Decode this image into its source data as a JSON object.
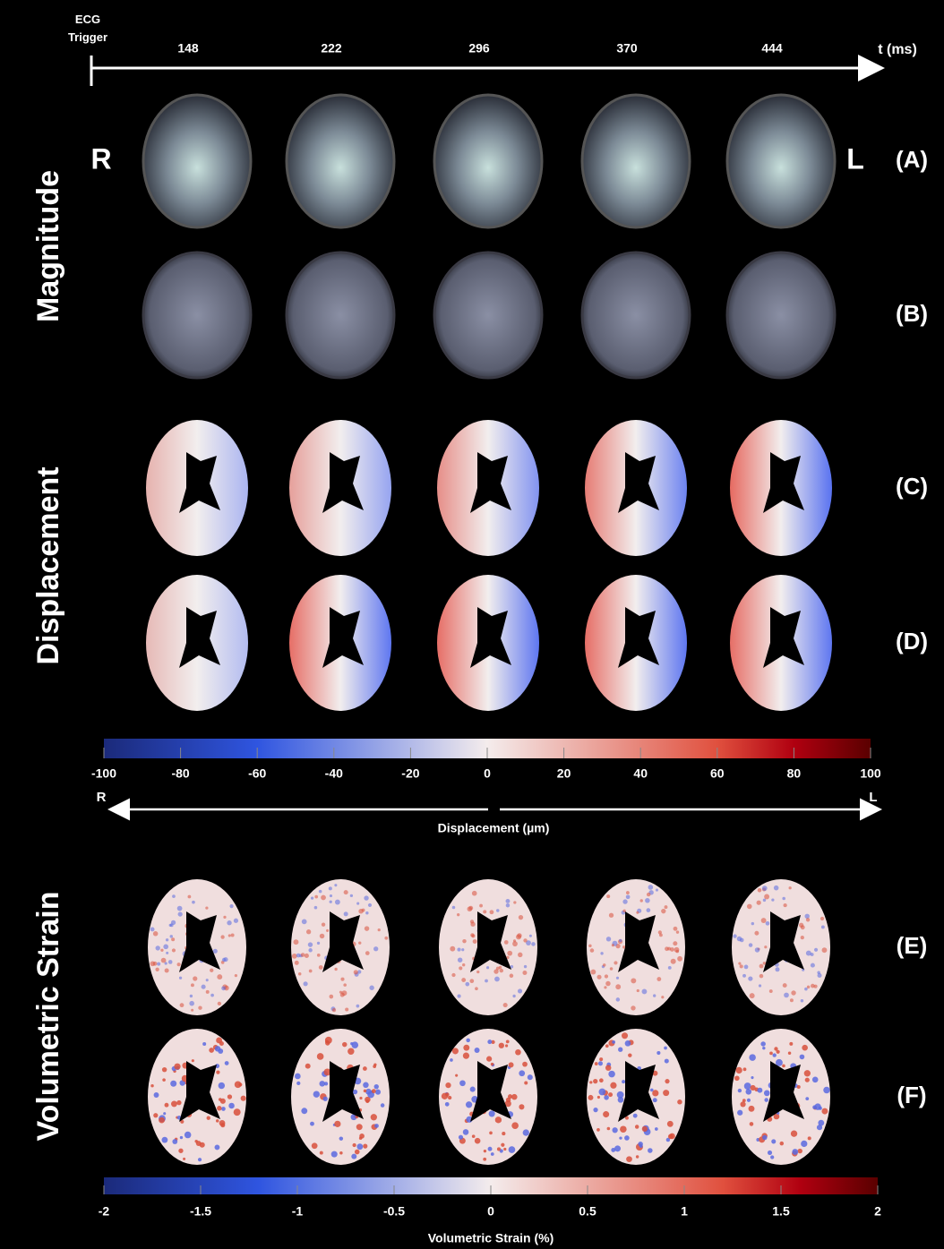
{
  "timeline": {
    "trigger_label": "ECG Trigger",
    "times": [
      148,
      222,
      296,
      370,
      444
    ],
    "axis_label": "t (ms)"
  },
  "orientation": {
    "right": "R",
    "left": "L"
  },
  "row_groups": [
    "Magnitude",
    "Displacement",
    "Volumetric Strain"
  ],
  "row_labels": [
    "(A)",
    "(B)",
    "(C)",
    "(D)",
    "(E)",
    "(F)"
  ],
  "displacement_colorbar": {
    "ticks": [
      -100,
      -80,
      -60,
      -40,
      -20,
      0,
      20,
      40,
      60,
      80,
      100
    ],
    "direction_right": "R",
    "direction_left": "L",
    "label": "Displacement (µm)"
  },
  "strain_colorbar": {
    "ticks": [
      -2,
      -1.5,
      -1,
      -0.5,
      0,
      0.5,
      1,
      1.5,
      2
    ],
    "label": "Volumetric Strain (%)"
  }
}
